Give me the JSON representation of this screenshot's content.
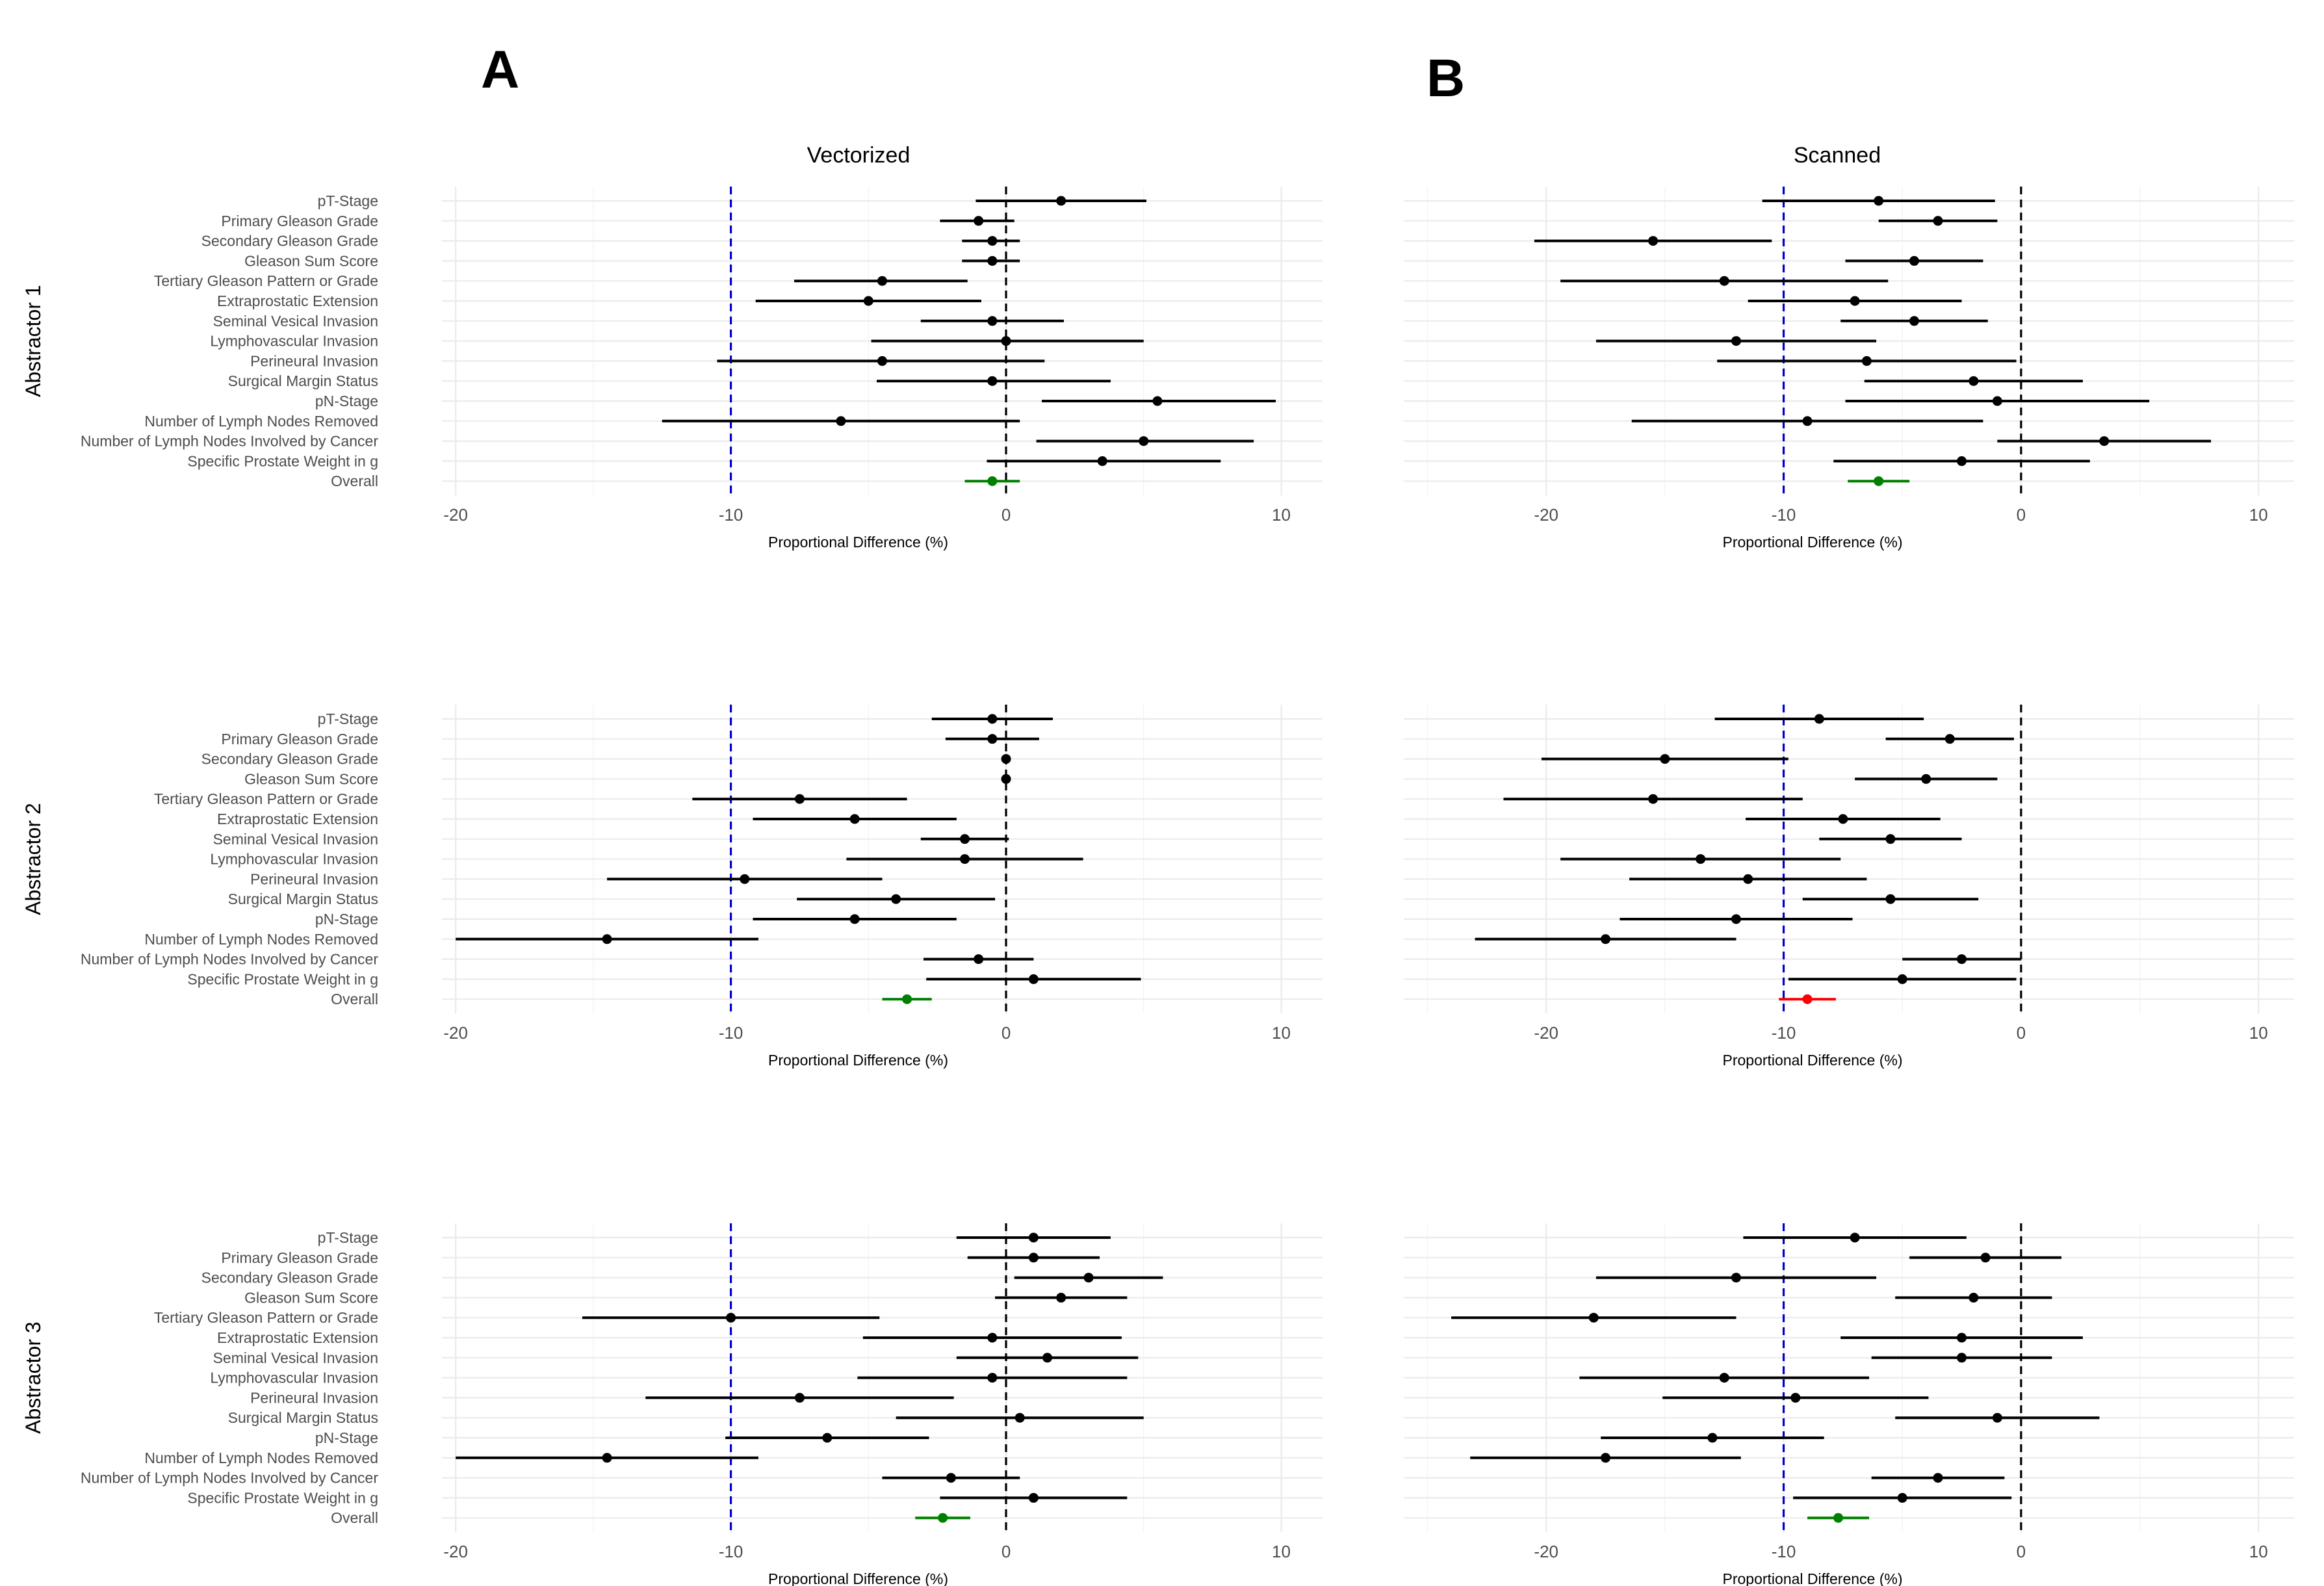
{
  "colors": {
    "point": "#000000",
    "overall_pass": "#008000",
    "overall_fail": "#ff0000",
    "threshold_line": "#0000cc",
    "zero_line": "#000000"
  },
  "panel_letters": [
    "A",
    "B"
  ],
  "column_titles": [
    "Vectorized",
    "Scanned"
  ],
  "row_titles": [
    "Abstractor 1",
    "Abstractor 2",
    "Abstractor 3"
  ],
  "chart_data": [
    {
      "type": "forest",
      "row": 0,
      "col": 0,
      "title": "Vectorized",
      "strip": "Abstractor 1",
      "xlabel": "Proportional Difference (%)",
      "xlim": [
        -20.5,
        11.5
      ],
      "xticks": [
        -20,
        -10,
        0,
        10
      ],
      "reference_lines": [
        {
          "x": -10,
          "style": "dashed",
          "color": "#0000cc"
        },
        {
          "x": 0,
          "style": "dashed",
          "color": "#000000"
        }
      ],
      "categories": [
        "pT-Stage",
        "Primary Gleason Grade",
        "Secondary Gleason Grade",
        "Gleason Sum Score",
        "Tertiary Gleason Pattern or Grade",
        "Extraprostatic Extension",
        "Seminal Vesical Invasion",
        "Lymphovascular Invasion",
        "Perineural Invasion",
        "Surgical Margin Status",
        "pN-Stage",
        "Number of Lymph Nodes Removed",
        "Number of Lymph Nodes Involved by Cancer",
        "Specific Prostate Weight in g",
        "Overall"
      ],
      "estimates": [
        2.0,
        -1.0,
        -0.5,
        -0.5,
        -4.5,
        -5.0,
        -0.5,
        0.0,
        -4.5,
        -0.5,
        5.5,
        -6.0,
        5.0,
        3.5,
        -0.5
      ],
      "lower": [
        -1.1,
        -2.4,
        -1.6,
        -1.6,
        -7.7,
        -9.1,
        -3.1,
        -4.9,
        -10.5,
        -4.7,
        1.3,
        -12.5,
        1.1,
        -0.7,
        -1.5
      ],
      "upper": [
        5.1,
        0.3,
        0.5,
        0.5,
        -1.4,
        -0.9,
        2.1,
        5.0,
        1.4,
        3.8,
        9.8,
        0.5,
        9.0,
        7.8,
        0.5
      ],
      "overall_status": "pass"
    },
    {
      "type": "forest",
      "row": 0,
      "col": 1,
      "title": "Scanned",
      "strip": "Abstractor 1",
      "xlabel": "Proportional Difference (%)",
      "xlim": [
        -26,
        11.5
      ],
      "xticks": [
        -20,
        -10,
        0,
        10
      ],
      "reference_lines": [
        {
          "x": -10,
          "style": "dashed",
          "color": "#0000cc"
        },
        {
          "x": 0,
          "style": "dashed",
          "color": "#000000"
        }
      ],
      "categories": [
        "pT-Stage",
        "Primary Gleason Grade",
        "Secondary Gleason Grade",
        "Gleason Sum Score",
        "Tertiary Gleason Pattern or Grade",
        "Extraprostatic Extension",
        "Seminal Vesical Invasion",
        "Lymphovascular Invasion",
        "Perineural Invasion",
        "Surgical Margin Status",
        "pN-Stage",
        "Number of Lymph Nodes Removed",
        "Number of Lymph Nodes Involved by Cancer",
        "Specific Prostate Weight in g",
        "Overall"
      ],
      "estimates": [
        -6.0,
        -3.5,
        -15.5,
        -4.5,
        -12.5,
        -7.0,
        -4.5,
        -12.0,
        -6.5,
        -2.0,
        -1.0,
        -9.0,
        3.5,
        -2.5,
        -6.0
      ],
      "lower": [
        -10.9,
        -6.0,
        -20.5,
        -7.4,
        -19.4,
        -11.5,
        -7.6,
        -17.9,
        -12.8,
        -6.6,
        -7.4,
        -16.4,
        -1.0,
        -7.9,
        -7.3
      ],
      "upper": [
        -1.1,
        -1.0,
        -10.5,
        -1.6,
        -5.6,
        -2.5,
        -1.4,
        -6.1,
        -0.2,
        2.6,
        5.4,
        -1.6,
        8.0,
        2.9,
        -4.7
      ],
      "overall_status": "pass"
    },
    {
      "type": "forest",
      "row": 1,
      "col": 0,
      "title": "",
      "strip": "Abstractor 2",
      "xlabel": "Proportional Difference (%)",
      "xlim": [
        -20.5,
        11.5
      ],
      "xticks": [
        -20,
        -10,
        0,
        10
      ],
      "reference_lines": [
        {
          "x": -10,
          "style": "dashed",
          "color": "#0000cc"
        },
        {
          "x": 0,
          "style": "dashed",
          "color": "#000000"
        }
      ],
      "categories": [
        "pT-Stage",
        "Primary Gleason Grade",
        "Secondary Gleason Grade",
        "Gleason Sum Score",
        "Tertiary Gleason Pattern or Grade",
        "Extraprostatic Extension",
        "Seminal Vesical Invasion",
        "Lymphovascular Invasion",
        "Perineural Invasion",
        "Surgical Margin Status",
        "pN-Stage",
        "Number of Lymph Nodes Removed",
        "Number of Lymph Nodes Involved by Cancer",
        "Specific Prostate Weight in g",
        "Overall"
      ],
      "estimates": [
        -0.5,
        -0.5,
        0.0,
        0.0,
        -7.5,
        -5.5,
        -1.5,
        -1.5,
        -9.5,
        -4.0,
        -5.5,
        -14.5,
        -1.0,
        1.0,
        -3.6
      ],
      "lower": [
        -2.7,
        -2.2,
        0.0,
        0.0,
        -11.4,
        -9.2,
        -3.1,
        -5.8,
        -14.5,
        -7.6,
        -9.2,
        -20.0,
        -3.0,
        -2.9,
        -4.5
      ],
      "upper": [
        1.7,
        1.2,
        0.0,
        0.0,
        -3.6,
        -1.8,
        0.1,
        2.8,
        -4.5,
        -0.4,
        -1.8,
        -9.0,
        1.0,
        4.9,
        -2.7
      ],
      "overall_status": "pass"
    },
    {
      "type": "forest",
      "row": 1,
      "col": 1,
      "title": "",
      "strip": "Abstractor 2",
      "xlabel": "Proportional Difference (%)",
      "xlim": [
        -26,
        11.5
      ],
      "xticks": [
        -20,
        -10,
        0,
        10
      ],
      "reference_lines": [
        {
          "x": -10,
          "style": "dashed",
          "color": "#0000cc"
        },
        {
          "x": 0,
          "style": "dashed",
          "color": "#000000"
        }
      ],
      "categories": [
        "pT-Stage",
        "Primary Gleason Grade",
        "Secondary Gleason Grade",
        "Gleason Sum Score",
        "Tertiary Gleason Pattern or Grade",
        "Extraprostatic Extension",
        "Seminal Vesical Invasion",
        "Lymphovascular Invasion",
        "Perineural Invasion",
        "Surgical Margin Status",
        "pN-Stage",
        "Number of Lymph Nodes Removed",
        "Number of Lymph Nodes Involved by Cancer",
        "Specific Prostate Weight in g",
        "Overall"
      ],
      "estimates": [
        -8.5,
        -3.0,
        -15.0,
        -4.0,
        -15.5,
        -7.5,
        -5.5,
        -13.5,
        -11.5,
        -5.5,
        -12.0,
        -17.5,
        -2.5,
        -5.0,
        -9.0
      ],
      "lower": [
        -12.9,
        -5.7,
        -20.2,
        -7.0,
        -21.8,
        -11.6,
        -8.5,
        -19.4,
        -16.5,
        -9.2,
        -16.9,
        -23.0,
        -5.0,
        -9.8,
        -10.2
      ],
      "upper": [
        -4.1,
        -0.3,
        -9.8,
        -1.0,
        -9.2,
        -3.4,
        -2.5,
        -7.6,
        -6.5,
        -1.8,
        -7.1,
        -12.0,
        0.0,
        -0.2,
        -7.8
      ],
      "overall_status": "fail"
    },
    {
      "type": "forest",
      "row": 2,
      "col": 0,
      "title": "",
      "strip": "Abstractor 3",
      "xlabel": "Proportional Difference (%)",
      "xlim": [
        -20.5,
        11.5
      ],
      "xticks": [
        -20,
        -10,
        0,
        10
      ],
      "reference_lines": [
        {
          "x": -10,
          "style": "dashed",
          "color": "#0000cc"
        },
        {
          "x": 0,
          "style": "dashed",
          "color": "#000000"
        }
      ],
      "categories": [
        "pT-Stage",
        "Primary Gleason Grade",
        "Secondary Gleason Grade",
        "Gleason Sum Score",
        "Tertiary Gleason Pattern or Grade",
        "Extraprostatic Extension",
        "Seminal Vesical Invasion",
        "Lymphovascular Invasion",
        "Perineural Invasion",
        "Surgical Margin Status",
        "pN-Stage",
        "Number of Lymph Nodes Removed",
        "Number of Lymph Nodes Involved by Cancer",
        "Specific Prostate Weight in g",
        "Overall"
      ],
      "estimates": [
        1.0,
        1.0,
        3.0,
        2.0,
        -10.0,
        -0.5,
        1.5,
        -0.5,
        -7.5,
        0.5,
        -6.5,
        -14.5,
        -2.0,
        1.0,
        -2.3
      ],
      "lower": [
        -1.8,
        -1.4,
        0.3,
        -0.4,
        -15.4,
        -5.2,
        -1.8,
        -5.4,
        -13.1,
        -4.0,
        -10.2,
        -20.0,
        -4.5,
        -2.4,
        -3.3
      ],
      "upper": [
        3.8,
        3.4,
        5.7,
        4.4,
        -4.6,
        4.2,
        4.8,
        4.4,
        -1.9,
        5.0,
        -2.8,
        -9.0,
        0.5,
        4.4,
        -1.3
      ],
      "overall_status": "pass"
    },
    {
      "type": "forest",
      "row": 2,
      "col": 1,
      "title": "",
      "strip": "Abstractor 3",
      "xlabel": "Proportional Difference (%)",
      "xlim": [
        -26,
        11.5
      ],
      "xticks": [
        -20,
        -10,
        0,
        10
      ],
      "reference_lines": [
        {
          "x": -10,
          "style": "dashed",
          "color": "#0000cc"
        },
        {
          "x": 0,
          "style": "dashed",
          "color": "#000000"
        }
      ],
      "categories": [
        "pT-Stage",
        "Primary Gleason Grade",
        "Secondary Gleason Grade",
        "Gleason Sum Score",
        "Tertiary Gleason Pattern or Grade",
        "Extraprostatic Extension",
        "Seminal Vesical Invasion",
        "Lymphovascular Invasion",
        "Perineural Invasion",
        "Surgical Margin Status",
        "pN-Stage",
        "Number of Lymph Nodes Removed",
        "Number of Lymph Nodes Involved by Cancer",
        "Specific Prostate Weight in g",
        "Overall"
      ],
      "estimates": [
        -7.0,
        -1.5,
        -12.0,
        -2.0,
        -18.0,
        -2.5,
        -2.5,
        -12.5,
        -9.5,
        -1.0,
        -13.0,
        -17.5,
        -3.5,
        -5.0,
        -7.7
      ],
      "lower": [
        -11.7,
        -4.7,
        -17.9,
        -5.3,
        -24.0,
        -7.6,
        -6.3,
        -18.6,
        -15.1,
        -5.3,
        -17.7,
        -23.2,
        -6.3,
        -9.6,
        -9.0
      ],
      "upper": [
        -2.3,
        1.7,
        -6.1,
        1.3,
        -12.0,
        2.6,
        1.3,
        -6.4,
        -3.9,
        3.3,
        -8.3,
        -11.8,
        -0.7,
        -0.4,
        -6.4
      ],
      "overall_status": "pass"
    }
  ]
}
